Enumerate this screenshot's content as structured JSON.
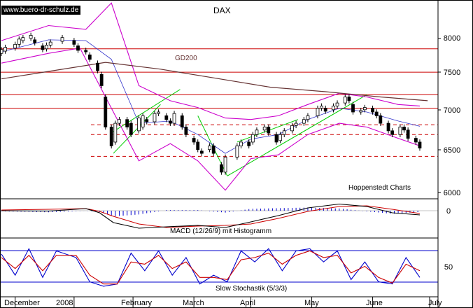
{
  "watermark": "www.buero-dr-schulz.de",
  "chart_data": {
    "type": "candlestick",
    "title": "DAX",
    "source_note": "Hoppenstedt Charts",
    "price_ticks": [
      "8000",
      "7500",
      "7000",
      "6500",
      "6000"
    ],
    "x_ticks": [
      "December",
      "2008",
      "February",
      "March",
      "April",
      "May",
      "June",
      "July"
    ],
    "ylim": [
      5800,
      8300
    ],
    "grid": false,
    "moving_average": {
      "label": "GD200",
      "points": [
        [
          "2007-11-26",
          7440
        ],
        [
          "2007-12-20",
          7540
        ],
        [
          "2008-01-18",
          7660
        ],
        [
          "2008-02-15",
          7570
        ],
        [
          "2008-03-14",
          7450
        ],
        [
          "2008-04-11",
          7330
        ],
        [
          "2008-05-09",
          7270
        ],
        [
          "2008-06-06",
          7200
        ],
        [
          "2008-06-30",
          7150
        ]
      ]
    },
    "bollinger_upper": [
      [
        "2007-11-26",
        7950
      ],
      [
        "2007-12-20",
        8150
      ],
      [
        "2008-01-08",
        8100
      ],
      [
        "2008-01-21",
        8450
      ],
      [
        "2008-02-04",
        7350
      ],
      [
        "2008-02-20",
        7150
      ],
      [
        "2008-03-05",
        7060
      ],
      [
        "2008-03-19",
        6920
      ],
      [
        "2008-04-01",
        6900
      ],
      [
        "2008-04-15",
        6950
      ],
      [
        "2008-04-30",
        7100
      ],
      [
        "2008-05-16",
        7250
      ],
      [
        "2008-05-30",
        7200
      ],
      [
        "2008-06-15",
        7100
      ],
      [
        "2008-06-26",
        7080
      ]
    ],
    "bollinger_lower": [
      [
        "2007-11-26",
        7650
      ],
      [
        "2007-12-20",
        7780
      ],
      [
        "2008-01-05",
        7850
      ],
      [
        "2008-01-18",
        7200
      ],
      [
        "2008-02-04",
        6350
      ],
      [
        "2008-02-20",
        6580
      ],
      [
        "2008-03-05",
        6350
      ],
      [
        "2008-03-19",
        5960
      ],
      [
        "2008-04-01",
        6380
      ],
      [
        "2008-04-15",
        6430
      ],
      [
        "2008-04-30",
        6700
      ],
      [
        "2008-05-16",
        6850
      ],
      [
        "2008-05-30",
        6800
      ],
      [
        "2008-06-15",
        6650
      ],
      [
        "2008-06-26",
        6550
      ]
    ],
    "bollinger_mid": [
      [
        "2007-11-26",
        7800
      ],
      [
        "2007-12-20",
        7960
      ],
      [
        "2008-01-08",
        7950
      ],
      [
        "2008-01-21",
        7700
      ],
      [
        "2008-02-04",
        6850
      ],
      [
        "2008-02-20",
        6880
      ],
      [
        "2008-03-05",
        6700
      ],
      [
        "2008-03-19",
        6450
      ],
      [
        "2008-04-01",
        6640
      ],
      [
        "2008-04-15",
        6700
      ],
      [
        "2008-04-30",
        6900
      ],
      [
        "2008-05-16",
        7050
      ],
      [
        "2008-05-30",
        7000
      ],
      [
        "2008-06-15",
        6880
      ],
      [
        "2008-06-26",
        6810
      ]
    ],
    "horizontal_levels": [
      {
        "price": 7840,
        "style": "solid"
      },
      {
        "price": 7530,
        "style": "solid"
      },
      {
        "price": 7230,
        "style": "solid"
      },
      {
        "price": 7050,
        "style": "solid"
      },
      {
        "price": 6830,
        "style": "dashed"
      },
      {
        "price": 6700,
        "style": "dashed"
      },
      {
        "price": 6410,
        "style": "dashed"
      }
    ],
    "trend_channels": [
      {
        "from": [
          "2008-01-22",
          6450
        ],
        "to": [
          "2008-02-15",
          7100
        ]
      },
      {
        "from": [
          "2008-01-22",
          6740
        ],
        "to": [
          "2008-02-25",
          7300
        ]
      },
      {
        "from": [
          "2008-03-05",
          6950
        ],
        "to": [
          "2008-03-20",
          6150
        ]
      },
      {
        "from": [
          "2008-03-20",
          6150
        ],
        "to": [
          "2008-05-30",
          7230
        ]
      },
      {
        "from": [
          "2008-03-25",
          6600
        ],
        "to": [
          "2008-04-25",
          6900
        ]
      }
    ],
    "candles": [
      [
        "2007-11-26",
        7780,
        7830
      ],
      [
        "2007-11-28",
        7810,
        7860
      ],
      [
        "2007-12-03",
        7850,
        7900
      ],
      [
        "2007-12-05",
        7900,
        7970
      ],
      [
        "2007-12-07",
        7950,
        7990
      ],
      [
        "2007-12-11",
        7980,
        8020
      ],
      [
        "2007-12-13",
        7960,
        7920
      ],
      [
        "2007-12-17",
        7880,
        7830
      ],
      [
        "2007-12-19",
        7840,
        7890
      ],
      [
        "2007-12-21",
        7890,
        7930
      ],
      [
        "2007-12-27",
        7940,
        7990
      ],
      [
        "2008-01-02",
        7950,
        7900
      ],
      [
        "2008-01-04",
        7880,
        7820
      ],
      [
        "2008-01-08",
        7820,
        7800
      ],
      [
        "2008-01-10",
        7760,
        7700
      ],
      [
        "2008-01-14",
        7650,
        7550
      ],
      [
        "2008-01-16",
        7500,
        7350
      ],
      [
        "2008-01-18",
        7200,
        6800
      ],
      [
        "2008-01-21",
        6800,
        6550
      ],
      [
        "2008-01-23",
        6600,
        6850
      ],
      [
        "2008-01-25",
        6850,
        6900
      ],
      [
        "2008-01-29",
        6900,
        6800
      ],
      [
        "2008-01-31",
        6850,
        6700
      ],
      [
        "2008-02-04",
        6750,
        6920
      ],
      [
        "2008-02-06",
        6800,
        6950
      ],
      [
        "2008-02-08",
        6900,
        6870
      ],
      [
        "2008-02-12",
        6870,
        6980
      ],
      [
        "2008-02-14",
        6980,
        7000
      ],
      [
        "2008-02-18",
        6950,
        6900
      ],
      [
        "2008-02-20",
        6880,
        6850
      ],
      [
        "2008-02-22",
        6850,
        6980
      ],
      [
        "2008-02-26",
        6950,
        6800
      ],
      [
        "2008-02-28",
        6800,
        6700
      ],
      [
        "2008-03-03",
        6650,
        6600
      ],
      [
        "2008-03-05",
        6600,
        6500
      ],
      [
        "2008-03-07",
        6480,
        6450
      ],
      [
        "2008-03-11",
        6500,
        6550
      ],
      [
        "2008-03-13",
        6550,
        6450
      ],
      [
        "2008-03-17",
        6300,
        6200
      ],
      [
        "2008-03-19",
        6200,
        6400
      ],
      [
        "2008-03-25",
        6400,
        6550
      ],
      [
        "2008-03-27",
        6550,
        6600
      ],
      [
        "2008-03-31",
        6600,
        6550
      ],
      [
        "2008-04-02",
        6600,
        6700
      ],
      [
        "2008-04-04",
        6700,
        6760
      ],
      [
        "2008-04-08",
        6760,
        6800
      ],
      [
        "2008-04-10",
        6800,
        6720
      ],
      [
        "2008-04-14",
        6700,
        6600
      ],
      [
        "2008-04-16",
        6620,
        6700
      ],
      [
        "2008-04-18",
        6700,
        6750
      ],
      [
        "2008-04-22",
        6750,
        6820
      ],
      [
        "2008-04-24",
        6820,
        6850
      ],
      [
        "2008-04-28",
        6850,
        6900
      ],
      [
        "2008-04-30",
        6900,
        6950
      ],
      [
        "2008-05-05",
        6950,
        7050
      ],
      [
        "2008-05-07",
        7050,
        7080
      ],
      [
        "2008-05-09",
        7050,
        7010
      ],
      [
        "2008-05-13",
        7030,
        7080
      ],
      [
        "2008-05-15",
        7080,
        7120
      ],
      [
        "2008-05-19",
        7120,
        7200
      ],
      [
        "2008-05-21",
        7200,
        7150
      ],
      [
        "2008-05-23",
        7100,
        7000
      ],
      [
        "2008-05-27",
        7000,
        7020
      ],
      [
        "2008-05-29",
        7030,
        7060
      ],
      [
        "2008-06-02",
        7050,
        7000
      ],
      [
        "2008-06-04",
        7000,
        6950
      ],
      [
        "2008-06-06",
        6950,
        6850
      ],
      [
        "2008-06-10",
        6850,
        6750
      ],
      [
        "2008-06-12",
        6750,
        6700
      ],
      [
        "2008-06-16",
        6700,
        6800
      ],
      [
        "2008-06-18",
        6800,
        6760
      ],
      [
        "2008-06-20",
        6760,
        6650
      ],
      [
        "2008-06-24",
        6650,
        6600
      ],
      [
        "2008-06-26",
        6600,
        6520
      ]
    ],
    "macd": {
      "label": "MACD (12/26/9) mit Histogramm",
      "ticks": [
        "0"
      ],
      "ylim": [
        -300,
        120
      ],
      "macd_line": [
        [
          "2007-11-26",
          0
        ],
        [
          "2007-12-20",
          -5
        ],
        [
          "2008-01-08",
          30
        ],
        [
          "2008-01-15",
          -30
        ],
        [
          "2008-01-22",
          -170
        ],
        [
          "2008-02-04",
          -250
        ],
        [
          "2008-02-18",
          -230
        ],
        [
          "2008-03-05",
          -210
        ],
        [
          "2008-03-19",
          -240
        ],
        [
          "2008-04-01",
          -160
        ],
        [
          "2008-04-15",
          -70
        ],
        [
          "2008-04-30",
          40
        ],
        [
          "2008-05-16",
          95
        ],
        [
          "2008-05-30",
          60
        ],
        [
          "2008-06-12",
          -30
        ],
        [
          "2008-06-26",
          -60
        ]
      ],
      "signal_line": [
        [
          "2007-11-26",
          10
        ],
        [
          "2007-12-20",
          20
        ],
        [
          "2008-01-08",
          30
        ],
        [
          "2008-01-15",
          -10
        ],
        [
          "2008-01-22",
          -80
        ],
        [
          "2008-02-04",
          -190
        ],
        [
          "2008-02-18",
          -240
        ],
        [
          "2008-03-05",
          -220
        ],
        [
          "2008-03-19",
          -210
        ],
        [
          "2008-04-01",
          -190
        ],
        [
          "2008-04-15",
          -110
        ],
        [
          "2008-04-30",
          -10
        ],
        [
          "2008-05-16",
          60
        ],
        [
          "2008-05-30",
          70
        ],
        [
          "2008-06-12",
          20
        ],
        [
          "2008-06-26",
          -40
        ]
      ]
    },
    "stochastic": {
      "label": "Slow Stochastik (5/3/3)",
      "ticks": [
        "50"
      ],
      "ylim": [
        0,
        100
      ],
      "k_line": [
        [
          "2007-11-26",
          78
        ],
        [
          "2007-12-03",
          30
        ],
        [
          "2007-12-10",
          90
        ],
        [
          "2007-12-17",
          25
        ],
        [
          "2007-12-24",
          85
        ],
        [
          "2008-01-03",
          70
        ],
        [
          "2008-01-10",
          15
        ],
        [
          "2008-01-17",
          5
        ],
        [
          "2008-01-24",
          10
        ],
        [
          "2008-01-31",
          80
        ],
        [
          "2008-02-07",
          40
        ],
        [
          "2008-02-14",
          85
        ],
        [
          "2008-02-21",
          30
        ],
        [
          "2008-02-28",
          70
        ],
        [
          "2008-03-06",
          10
        ],
        [
          "2008-03-13",
          30
        ],
        [
          "2008-03-20",
          15
        ],
        [
          "2008-03-27",
          85
        ],
        [
          "2008-04-03",
          60
        ],
        [
          "2008-04-10",
          90
        ],
        [
          "2008-04-17",
          40
        ],
        [
          "2008-04-24",
          85
        ],
        [
          "2008-05-01",
          90
        ],
        [
          "2008-05-08",
          60
        ],
        [
          "2008-05-15",
          85
        ],
        [
          "2008-05-22",
          20
        ],
        [
          "2008-05-29",
          60
        ],
        [
          "2008-06-05",
          15
        ],
        [
          "2008-06-12",
          10
        ],
        [
          "2008-06-19",
          70
        ],
        [
          "2008-06-26",
          25
        ]
      ],
      "d_line": [
        [
          "2007-11-26",
          70
        ],
        [
          "2007-12-03",
          45
        ],
        [
          "2007-12-10",
          75
        ],
        [
          "2007-12-17",
          40
        ],
        [
          "2007-12-24",
          75
        ],
        [
          "2008-01-03",
          75
        ],
        [
          "2008-01-10",
          30
        ],
        [
          "2008-01-17",
          10
        ],
        [
          "2008-01-24",
          10
        ],
        [
          "2008-01-31",
          60
        ],
        [
          "2008-02-07",
          55
        ],
        [
          "2008-02-14",
          75
        ],
        [
          "2008-02-21",
          45
        ],
        [
          "2008-02-28",
          60
        ],
        [
          "2008-03-06",
          25
        ],
        [
          "2008-03-13",
          25
        ],
        [
          "2008-03-20",
          20
        ],
        [
          "2008-03-27",
          65
        ],
        [
          "2008-04-03",
          70
        ],
        [
          "2008-04-10",
          80
        ],
        [
          "2008-04-17",
          55
        ],
        [
          "2008-04-24",
          75
        ],
        [
          "2008-05-01",
          85
        ],
        [
          "2008-05-08",
          70
        ],
        [
          "2008-05-15",
          75
        ],
        [
          "2008-05-22",
          35
        ],
        [
          "2008-05-29",
          50
        ],
        [
          "2008-06-05",
          25
        ],
        [
          "2008-06-12",
          12
        ],
        [
          "2008-06-19",
          55
        ],
        [
          "2008-06-26",
          40
        ]
      ]
    },
    "colors": {
      "candle_up": "#ffffff",
      "candle_down": "#000000",
      "bollinger": "#cc00cc",
      "moving_average": "#663333",
      "levels": "#cc0000",
      "channels": "#00cc00",
      "macd": "#000000",
      "signal": "#cc0000",
      "histogram": "#0000cc",
      "stoch_k": "#0000cc",
      "stoch_d": "#cc0000",
      "stoch_levels": "#0000cc"
    }
  }
}
